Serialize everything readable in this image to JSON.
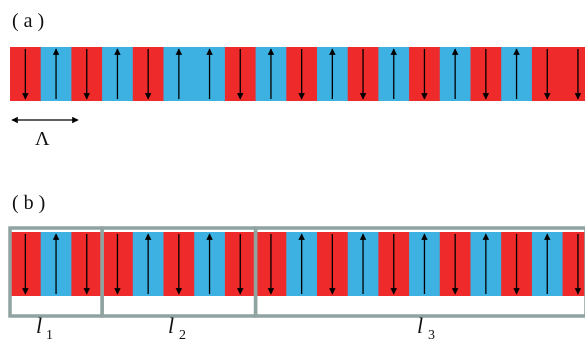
{
  "panels": [
    {
      "label": "( a )",
      "pattern": [
        "down",
        "up",
        "down",
        "up",
        "down",
        "up",
        "up",
        "down",
        "up",
        "down",
        "up",
        "down",
        "up",
        "down",
        "up",
        "down",
        "up",
        "down",
        "down"
      ],
      "period_label": "Λ"
    },
    {
      "label": "( b )",
      "pattern": [
        "down",
        "up",
        "down",
        "down",
        "up",
        "down",
        "up",
        "down",
        "down",
        "up",
        "down",
        "up",
        "down",
        "up",
        "down",
        "up",
        "down",
        "up",
        "down"
      ],
      "segments": [
        {
          "label": "l",
          "sub": "1",
          "domains": 3
        },
        {
          "label": "l",
          "sub": "2",
          "domains": 5
        },
        {
          "label": "l",
          "sub": "3",
          "domains": 11
        }
      ]
    }
  ],
  "colors": {
    "down_domain": "#ee2a2a",
    "up_domain": "#3eb1e3",
    "arrow": "#000000",
    "segment_frame": "#8fa3a0"
  }
}
